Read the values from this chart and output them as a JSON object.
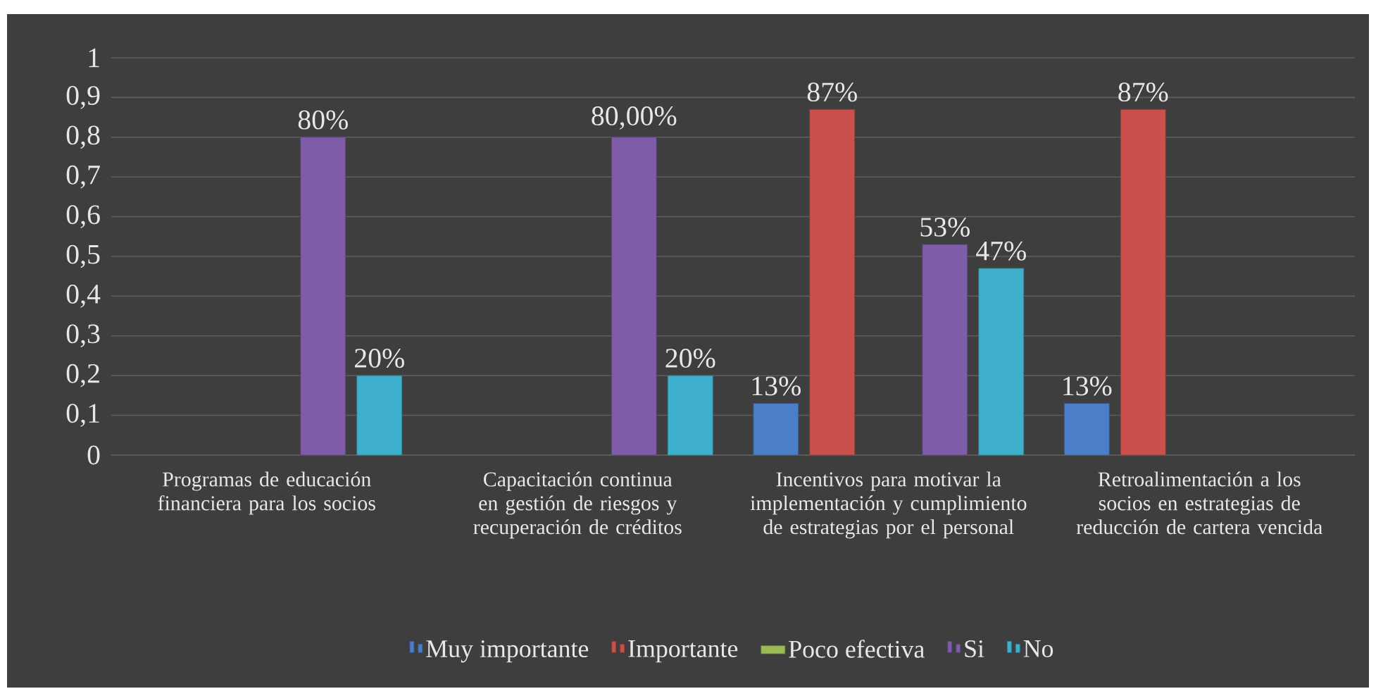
{
  "chart_data": {
    "type": "bar",
    "categories": [
      "Programas de educación financiera para los socios",
      "Capacitación continua en gestión de riesgos y recuperación de créditos",
      "Incentivos para motivar la implementación y cumplimiento de estrategias por el personal",
      "Retroalimentación a los socios en estrategias de reducción de cartera vencida"
    ],
    "series": [
      {
        "name": "Muy importante",
        "color": "#4a7ec8",
        "values": [
          null,
          null,
          0.13,
          0.13
        ],
        "value_labels": [
          null,
          null,
          "13%",
          "13%"
        ]
      },
      {
        "name": "Importante",
        "color": "#c9504b",
        "values": [
          null,
          null,
          0.87,
          0.87
        ],
        "value_labels": [
          null,
          null,
          "87%",
          "87%"
        ]
      },
      {
        "name": "Poco efectiva",
        "color": "#9bbb59",
        "values": [
          null,
          null,
          null,
          null
        ]
      },
      {
        "name": "Si",
        "color": "#7f5ca8",
        "values": [
          0.8,
          0.8,
          0.53,
          null
        ],
        "value_labels": [
          "80%",
          "80,00%",
          "53%",
          null
        ]
      },
      {
        "name": "No",
        "color": "#3fb0cc",
        "values": [
          0.2,
          0.2,
          0.47,
          null
        ],
        "value_labels": [
          "20%",
          "20%",
          "47%",
          null
        ]
      }
    ],
    "ylim": [
      0,
      1
    ],
    "yticks": [
      0,
      {
        "value": 0.1,
        "label": "0,1"
      },
      {
        "value": 0.2,
        "label": "0,2"
      },
      {
        "value": 0.3,
        "label": "0,3"
      },
      {
        "value": 0.4,
        "label": "0,4"
      },
      {
        "value": 0.5,
        "label": "0,5"
      },
      {
        "value": 0.6,
        "label": "0,6"
      },
      {
        "value": 0.7,
        "label": "0,7"
      },
      {
        "value": 0.8,
        "label": "0,8"
      },
      {
        "value": 0.9,
        "label": "0,9"
      },
      1
    ],
    "grid": "y",
    "legend": "bottom"
  }
}
